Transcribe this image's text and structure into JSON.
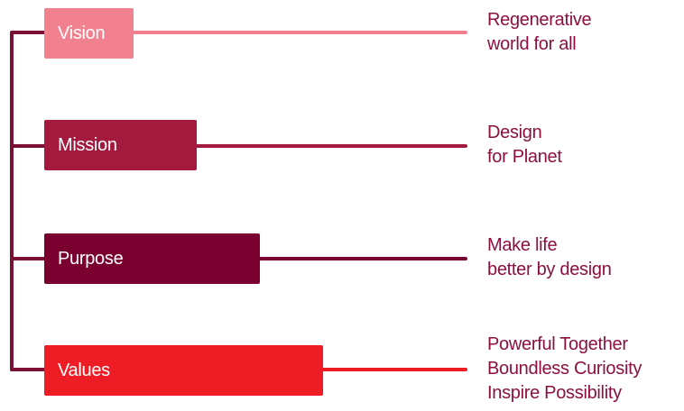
{
  "rows": [
    {
      "label": "Vision",
      "color": "#f2818f",
      "lines": [
        "Regenerative",
        "world for all"
      ]
    },
    {
      "label": "Mission",
      "color": "#a31a3e",
      "lines": [
        "Design",
        "for Planet"
      ]
    },
    {
      "label": "Purpose",
      "color": "#7a0030",
      "lines": [
        "Make life",
        "better by design"
      ]
    },
    {
      "label": "Values",
      "color": "#ee1c25",
      "lines": [
        "Powerful Together",
        "Boundless Curiosity",
        "Inspire Possibility"
      ]
    }
  ],
  "spine_color": "#7a1033",
  "text_color": "#8c0f3f"
}
